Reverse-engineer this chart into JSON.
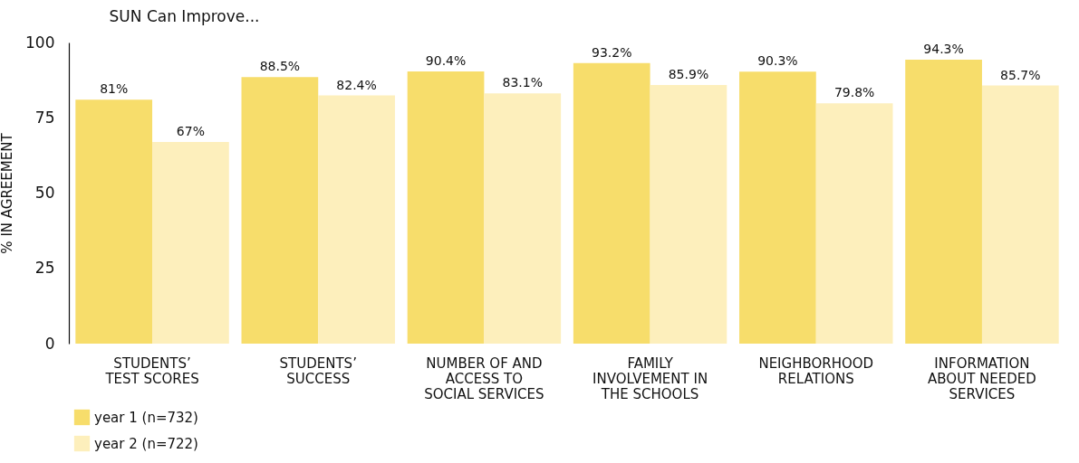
{
  "chart_data": {
    "type": "bar",
    "title": "SUN Can Improve...",
    "ylabel": "% IN AGREEMENT",
    "categories": [
      "STUDENTS’\nTEST SCORES",
      "STUDENTS’\nSUCCESS",
      "NUMBER OF AND\nACCESS TO\nSOCIAL SERVICES",
      "FAMILY\nINVOLVEMENT IN\nTHE SCHOOLS",
      "NEIGHBORHOOD\nRELATIONS",
      "INFORMATION\nABOUT NEEDED\nSERVICES"
    ],
    "series": [
      {
        "name": "year 1 (n=732)",
        "color": "#f7dd6b",
        "values": [
          81,
          88.5,
          90.4,
          93.2,
          90.3,
          94.3
        ],
        "value_labels": [
          "81%",
          "88.5%",
          "90.4%",
          "93.2%",
          "90.3%",
          "94.3%"
        ]
      },
      {
        "name": "year 2 (n=722)",
        "color": "#fdefbc",
        "values": [
          67,
          82.4,
          83.1,
          85.9,
          79.8,
          85.7
        ],
        "value_labels": [
          "67%",
          "82.4%",
          "83.1%",
          "85.9%",
          "79.8%",
          "85.7%"
        ]
      }
    ],
    "ylim": [
      0,
      100
    ],
    "yticks": [
      0,
      25,
      50,
      75,
      100
    ],
    "grid": false,
    "legend": "bottom left"
  }
}
